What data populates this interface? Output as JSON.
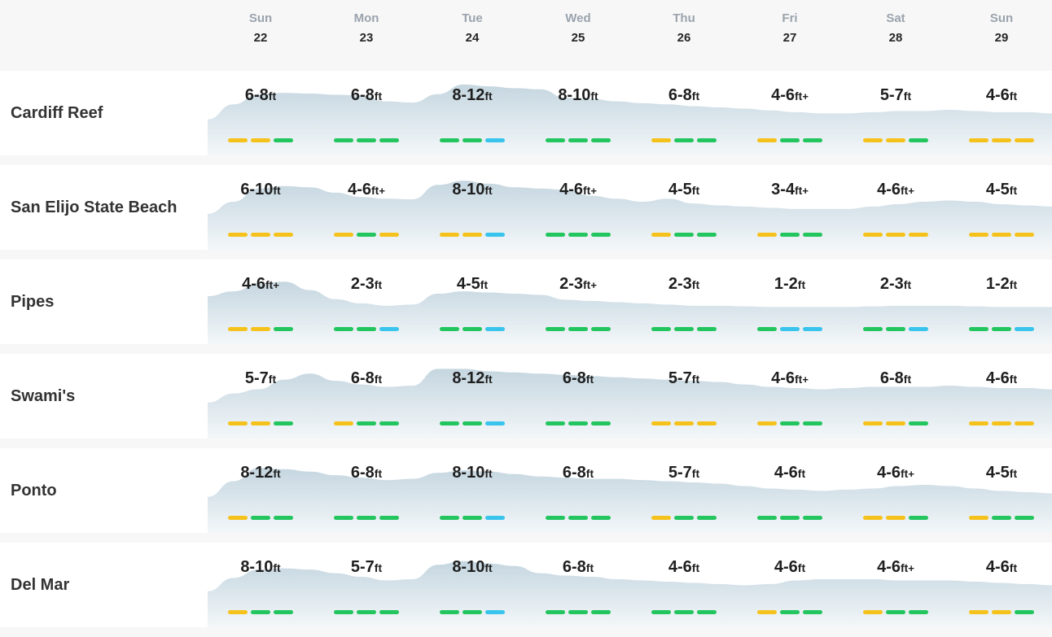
{
  "days": [
    {
      "name": "Sun",
      "num": "22"
    },
    {
      "name": "Mon",
      "num": "23"
    },
    {
      "name": "Tue",
      "num": "24"
    },
    {
      "name": "Wed",
      "num": "25"
    },
    {
      "name": "Thu",
      "num": "26"
    },
    {
      "name": "Fri",
      "num": "27"
    },
    {
      "name": "Sat",
      "num": "28"
    },
    {
      "name": "Sun",
      "num": "29"
    }
  ],
  "unit": "ft",
  "colors": {
    "fair": "#f5c21b",
    "good": "#22c55e",
    "poor": "#38c4ec"
  },
  "spots": [
    {
      "name": "Cardiff Reef",
      "days": [
        {
          "range": "6-8",
          "plus": "",
          "rating": [
            "fair",
            "fair",
            "good"
          ]
        },
        {
          "range": "6-8",
          "plus": "",
          "rating": [
            "good",
            "good",
            "good"
          ]
        },
        {
          "range": "8-12",
          "plus": "",
          "rating": [
            "good",
            "good",
            "poor"
          ]
        },
        {
          "range": "8-10",
          "plus": "",
          "rating": [
            "good",
            "good",
            "good"
          ]
        },
        {
          "range": "6-8",
          "plus": "",
          "rating": [
            "fair",
            "good",
            "good"
          ]
        },
        {
          "range": "4-6",
          "plus": "+",
          "rating": [
            "fair",
            "good",
            "good"
          ]
        },
        {
          "range": "5-7",
          "plus": "",
          "rating": [
            "fair",
            "fair",
            "good"
          ]
        },
        {
          "range": "4-6",
          "plus": "",
          "rating": [
            "fair",
            "fair",
            "fair"
          ]
        }
      ],
      "swell_profile": [
        0.3,
        0.55,
        0.72,
        0.74,
        0.73,
        0.71,
        0.7,
        0.6,
        0.58,
        0.72,
        0.88,
        0.85,
        0.82,
        0.8,
        0.66,
        0.64,
        0.6,
        0.57,
        0.55,
        0.52,
        0.5,
        0.48,
        0.45,
        0.42,
        0.4,
        0.4,
        0.42,
        0.44,
        0.44,
        0.46,
        0.44,
        0.42,
        0.42,
        0.4
      ]
    },
    {
      "name": "San Elijo State Beach",
      "days": [
        {
          "range": "6-10",
          "plus": "",
          "rating": [
            "fair",
            "fair",
            "fair"
          ]
        },
        {
          "range": "4-6",
          "plus": "+",
          "rating": [
            "fair",
            "good",
            "fair"
          ]
        },
        {
          "range": "8-10",
          "plus": "",
          "rating": [
            "fair",
            "fair",
            "poor"
          ]
        },
        {
          "range": "4-6",
          "plus": "+",
          "rating": [
            "good",
            "good",
            "good"
          ]
        },
        {
          "range": "4-5",
          "plus": "",
          "rating": [
            "fair",
            "good",
            "good"
          ]
        },
        {
          "range": "3-4",
          "plus": "+",
          "rating": [
            "fair",
            "good",
            "good"
          ]
        },
        {
          "range": "4-6",
          "plus": "+",
          "rating": [
            "fair",
            "fair",
            "fair"
          ]
        },
        {
          "range": "4-5",
          "plus": "",
          "rating": [
            "fair",
            "fair",
            "fair"
          ]
        }
      ],
      "swell_profile": [
        0.3,
        0.5,
        0.72,
        0.76,
        0.74,
        0.65,
        0.58,
        0.55,
        0.54,
        0.78,
        0.85,
        0.8,
        0.74,
        0.72,
        0.7,
        0.6,
        0.55,
        0.5,
        0.55,
        0.47,
        0.44,
        0.42,
        0.4,
        0.38,
        0.38,
        0.38,
        0.42,
        0.46,
        0.5,
        0.52,
        0.5,
        0.46,
        0.44,
        0.42
      ]
    },
    {
      "name": "Pipes",
      "days": [
        {
          "range": "4-6",
          "plus": "+",
          "rating": [
            "fair",
            "fair",
            "good"
          ]
        },
        {
          "range": "2-3",
          "plus": "",
          "rating": [
            "good",
            "good",
            "poor"
          ]
        },
        {
          "range": "4-5",
          "plus": "",
          "rating": [
            "good",
            "good",
            "poor"
          ]
        },
        {
          "range": "2-3",
          "plus": "+",
          "rating": [
            "good",
            "good",
            "good"
          ]
        },
        {
          "range": "2-3",
          "plus": "",
          "rating": [
            "good",
            "good",
            "good"
          ]
        },
        {
          "range": "1-2",
          "plus": "",
          "rating": [
            "good",
            "poor",
            "poor"
          ]
        },
        {
          "range": "2-3",
          "plus": "",
          "rating": [
            "good",
            "good",
            "poor"
          ]
        },
        {
          "range": "1-2",
          "plus": "",
          "rating": [
            "good",
            "good",
            "poor"
          ]
        }
      ],
      "swell_profile": [
        0.5,
        0.58,
        0.7,
        0.74,
        0.6,
        0.45,
        0.38,
        0.34,
        0.36,
        0.54,
        0.58,
        0.56,
        0.54,
        0.52,
        0.44,
        0.42,
        0.4,
        0.38,
        0.36,
        0.34,
        0.34,
        0.33,
        0.32,
        0.32,
        0.32,
        0.32,
        0.33,
        0.34,
        0.34,
        0.34,
        0.33,
        0.32,
        0.32,
        0.32
      ]
    },
    {
      "name": "Swami's",
      "days": [
        {
          "range": "5-7",
          "plus": "",
          "rating": [
            "fair",
            "fair",
            "good"
          ]
        },
        {
          "range": "6-8",
          "plus": "",
          "rating": [
            "fair",
            "good",
            "good"
          ]
        },
        {
          "range": "8-12",
          "plus": "",
          "rating": [
            "good",
            "good",
            "poor"
          ]
        },
        {
          "range": "6-8",
          "plus": "",
          "rating": [
            "good",
            "good",
            "good"
          ]
        },
        {
          "range": "5-7",
          "plus": "",
          "rating": [
            "fair",
            "fair",
            "fair"
          ]
        },
        {
          "range": "4-6",
          "plus": "+",
          "rating": [
            "fair",
            "good",
            "good"
          ]
        },
        {
          "range": "6-8",
          "plus": "",
          "rating": [
            "fair",
            "fair",
            "good"
          ]
        },
        {
          "range": "4-6",
          "plus": "",
          "rating": [
            "fair",
            "fair",
            "fair"
          ]
        }
      ],
      "swell_profile": [
        0.3,
        0.45,
        0.52,
        0.68,
        0.78,
        0.66,
        0.6,
        0.56,
        0.58,
        0.86,
        0.86,
        0.82,
        0.8,
        0.78,
        0.76,
        0.74,
        0.72,
        0.7,
        0.68,
        0.66,
        0.64,
        0.6,
        0.56,
        0.54,
        0.52,
        0.54,
        0.56,
        0.56,
        0.56,
        0.58,
        0.56,
        0.54,
        0.54,
        0.52
      ]
    },
    {
      "name": "Ponto",
      "days": [
        {
          "range": "8-12",
          "plus": "",
          "rating": [
            "fair",
            "good",
            "good"
          ]
        },
        {
          "range": "6-8",
          "plus": "",
          "rating": [
            "good",
            "good",
            "good"
          ]
        },
        {
          "range": "8-10",
          "plus": "",
          "rating": [
            "good",
            "good",
            "poor"
          ]
        },
        {
          "range": "6-8",
          "plus": "",
          "rating": [
            "good",
            "good",
            "good"
          ]
        },
        {
          "range": "5-7",
          "plus": "",
          "rating": [
            "fair",
            "good",
            "good"
          ]
        },
        {
          "range": "4-6",
          "plus": "",
          "rating": [
            "good",
            "good",
            "good"
          ]
        },
        {
          "range": "4-6",
          "plus": "+",
          "rating": [
            "fair",
            "fair",
            "good"
          ]
        },
        {
          "range": "4-5",
          "plus": "",
          "rating": [
            "fair",
            "good",
            "good"
          ]
        }
      ],
      "swell_profile": [
        0.3,
        0.56,
        0.78,
        0.76,
        0.72,
        0.66,
        0.62,
        0.58,
        0.6,
        0.7,
        0.74,
        0.72,
        0.68,
        0.64,
        0.62,
        0.6,
        0.6,
        0.58,
        0.56,
        0.54,
        0.52,
        0.48,
        0.44,
        0.42,
        0.4,
        0.42,
        0.44,
        0.48,
        0.5,
        0.48,
        0.44,
        0.4,
        0.38,
        0.36
      ]
    },
    {
      "name": "Del Mar",
      "days": [
        {
          "range": "8-10",
          "plus": "",
          "rating": [
            "fair",
            "good",
            "good"
          ]
        },
        {
          "range": "5-7",
          "plus": "",
          "rating": [
            "good",
            "good",
            "good"
          ]
        },
        {
          "range": "8-10",
          "plus": "",
          "rating": [
            "good",
            "good",
            "poor"
          ]
        },
        {
          "range": "6-8",
          "plus": "",
          "rating": [
            "good",
            "good",
            "good"
          ]
        },
        {
          "range": "4-6",
          "plus": "",
          "rating": [
            "good",
            "good",
            "good"
          ]
        },
        {
          "range": "4-6",
          "plus": "",
          "rating": [
            "fair",
            "good",
            "good"
          ]
        },
        {
          "range": "4-6",
          "plus": "+",
          "rating": [
            "fair",
            "good",
            "good"
          ]
        },
        {
          "range": "4-6",
          "plus": "",
          "rating": [
            "fair",
            "fair",
            "good"
          ]
        }
      ],
      "swell_profile": [
        0.3,
        0.52,
        0.66,
        0.68,
        0.66,
        0.6,
        0.54,
        0.48,
        0.5,
        0.74,
        0.8,
        0.76,
        0.72,
        0.6,
        0.56,
        0.54,
        0.5,
        0.48,
        0.46,
        0.44,
        0.42,
        0.4,
        0.42,
        0.48,
        0.5,
        0.5,
        0.5,
        0.48,
        0.48,
        0.48,
        0.46,
        0.44,
        0.42,
        0.4
      ]
    }
  ]
}
